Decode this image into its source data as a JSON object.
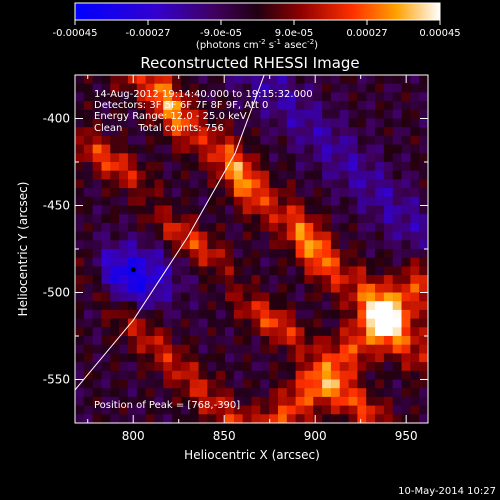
{
  "chart_data": {
    "type": "heatmap",
    "title": "Reconstructed RHESSI Image",
    "xlabel": "Heliocentric X (arcsec)",
    "ylabel": "Heliocentric Y (arcsec)",
    "xlim": [
      768,
      962
    ],
    "ylim": [
      -575,
      -375
    ],
    "x_ticks": [
      800,
      850,
      900,
      950
    ],
    "y_ticks": [
      -400,
      -450,
      -500,
      -550
    ],
    "colorbar": {
      "min": -0.00045,
      "max": 0.00045,
      "colormap": "blue-purple-red-yellow-white",
      "tick_values": [
        -0.00045,
        -0.00027,
        -9e-05,
        9e-05,
        0.00027,
        0.00045
      ],
      "tick_labels": [
        "-0.00045",
        "-0.00027",
        "-9.0e-05",
        "9.0e-05",
        "0.00027",
        "0.00045"
      ],
      "unit_prefix": "(photons cm",
      "unit_sup1": "-2",
      "unit_mid": " s",
      "unit_sup2": "-1",
      "unit_mid2": " asec",
      "unit_sup3": "-2",
      "unit_suffix": ")"
    },
    "annotations": [
      "14-Aug-2012 19:14:40.000 to 19:15:32.000",
      "Detectors: 3F 5F 6F 7F 8F 9F, Att 0",
      "Energy Range: 12.0 - 25.0 keV",
      "Clean     Total counts: 756",
      "Position of Peak = [768,-390]"
    ],
    "limb_curve": [
      [
        768,
        -556
      ],
      [
        800,
        -516
      ],
      [
        830,
        -468
      ],
      [
        856,
        -420
      ],
      [
        872,
        -375
      ]
    ],
    "min_marker": [
      800,
      -487
    ],
    "timestamp": "10-May-2014 10:27"
  }
}
